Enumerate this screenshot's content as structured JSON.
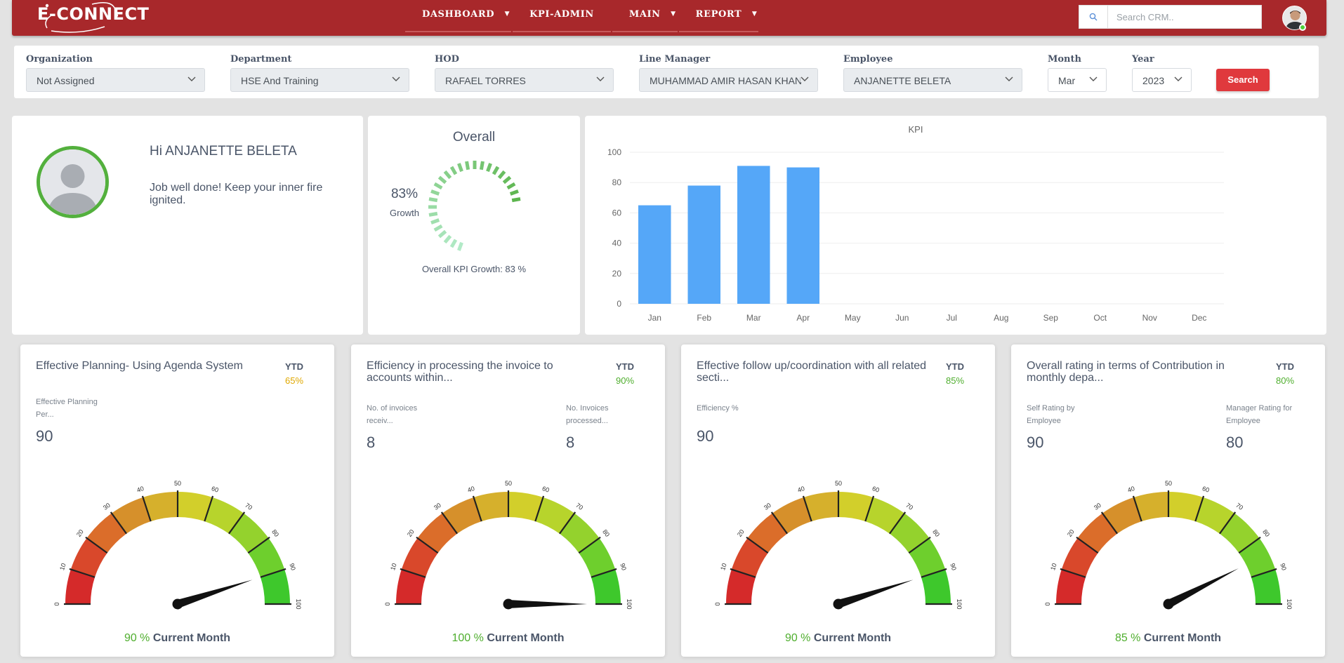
{
  "brand": {
    "logo_text": "E-CONNECT"
  },
  "nav": {
    "items": [
      {
        "label": "DASHBOARD",
        "has_caret": true
      },
      {
        "label": "KPI-ADMIN",
        "has_caret": false
      },
      {
        "label": "MAIN",
        "has_caret": true
      },
      {
        "label": "REPORT",
        "has_caret": true
      }
    ],
    "search_placeholder": "Search CRM.."
  },
  "filters": {
    "organization": {
      "label": "Organization",
      "value": "Not Assigned"
    },
    "department": {
      "label": "Department",
      "value": "HSE And Training"
    },
    "hod": {
      "label": "HOD",
      "value": "RAFAEL TORRES"
    },
    "line_manager": {
      "label": "Line Manager",
      "value": "MUHAMMAD AMIR HASAN KHAN"
    },
    "employee": {
      "label": "Employee",
      "value": "ANJANETTE BELETA"
    },
    "month": {
      "label": "Month",
      "value": "Mar"
    },
    "year": {
      "label": "Year",
      "value": "2023"
    },
    "search_button": "Search"
  },
  "profile": {
    "greeting": "Hi ANJANETTE BELETA",
    "message": "Job well done! Keep your inner fire ignited."
  },
  "overall": {
    "title": "Overall",
    "percent_text": "83%",
    "percent_value": 83,
    "growth_label": "Growth",
    "footer": "Overall KPI Growth: 83 %"
  },
  "chart_data": {
    "type": "bar",
    "title": "KPI",
    "categories": [
      "Jan",
      "Feb",
      "Mar",
      "Apr",
      "May",
      "Jun",
      "Jul",
      "Aug",
      "Sep",
      "Oct",
      "Nov",
      "Dec"
    ],
    "values": [
      65,
      78,
      91,
      90,
      null,
      null,
      null,
      null,
      null,
      null,
      null,
      null
    ],
    "ylim": [
      0,
      100
    ],
    "yticks": [
      0,
      20,
      40,
      60,
      80,
      100
    ],
    "grid": true,
    "color": "#55a7f8"
  },
  "gauges": [
    {
      "title": "Effective Planning- Using Agenda System",
      "ytd_label": "YTD",
      "ytd_value": "65%",
      "ytd_color": "#e0a800",
      "metrics": [
        {
          "label_1": "Effective Planning",
          "label_2": "Per...",
          "value": "90"
        }
      ],
      "needle_value": 90,
      "footer_pct": "90 %",
      "footer_label": "Current Month"
    },
    {
      "title": "Efficiency in processing the invoice to accounts within...",
      "ytd_label": "YTD",
      "ytd_value": "90%",
      "ytd_color": "#4fae2e",
      "metrics": [
        {
          "label_1": "No. of invoices",
          "label_2": "receiv...",
          "value": "8"
        },
        {
          "label_1": "No. Invoices",
          "label_2": "processed...",
          "value": "8"
        }
      ],
      "needle_value": 100,
      "footer_pct": "100 %",
      "footer_label": "Current Month"
    },
    {
      "title": "Effective follow up/coordination with all related secti...",
      "ytd_label": "YTD",
      "ytd_value": "85%",
      "ytd_color": "#4fae2e",
      "metrics": [
        {
          "label_1": "Efficiency %",
          "label_2": "",
          "value": "90"
        }
      ],
      "needle_value": 90,
      "footer_pct": "90 %",
      "footer_label": "Current Month"
    },
    {
      "title": "Overall rating in terms of Contribution in monthly depa...",
      "ytd_label": "YTD",
      "ytd_value": "80%",
      "ytd_color": "#4fae2e",
      "metrics": [
        {
          "label_1": "Self Rating by",
          "label_2": "Employee",
          "value": "90"
        },
        {
          "label_1": "Manager Rating for",
          "label_2": "Employee",
          "value": "80"
        }
      ],
      "needle_value": 85,
      "footer_pct": "85 %",
      "footer_label": "Current Month"
    }
  ],
  "gauge_scale": [
    0,
    10,
    20,
    30,
    40,
    50,
    60,
    70,
    80,
    90,
    100
  ]
}
